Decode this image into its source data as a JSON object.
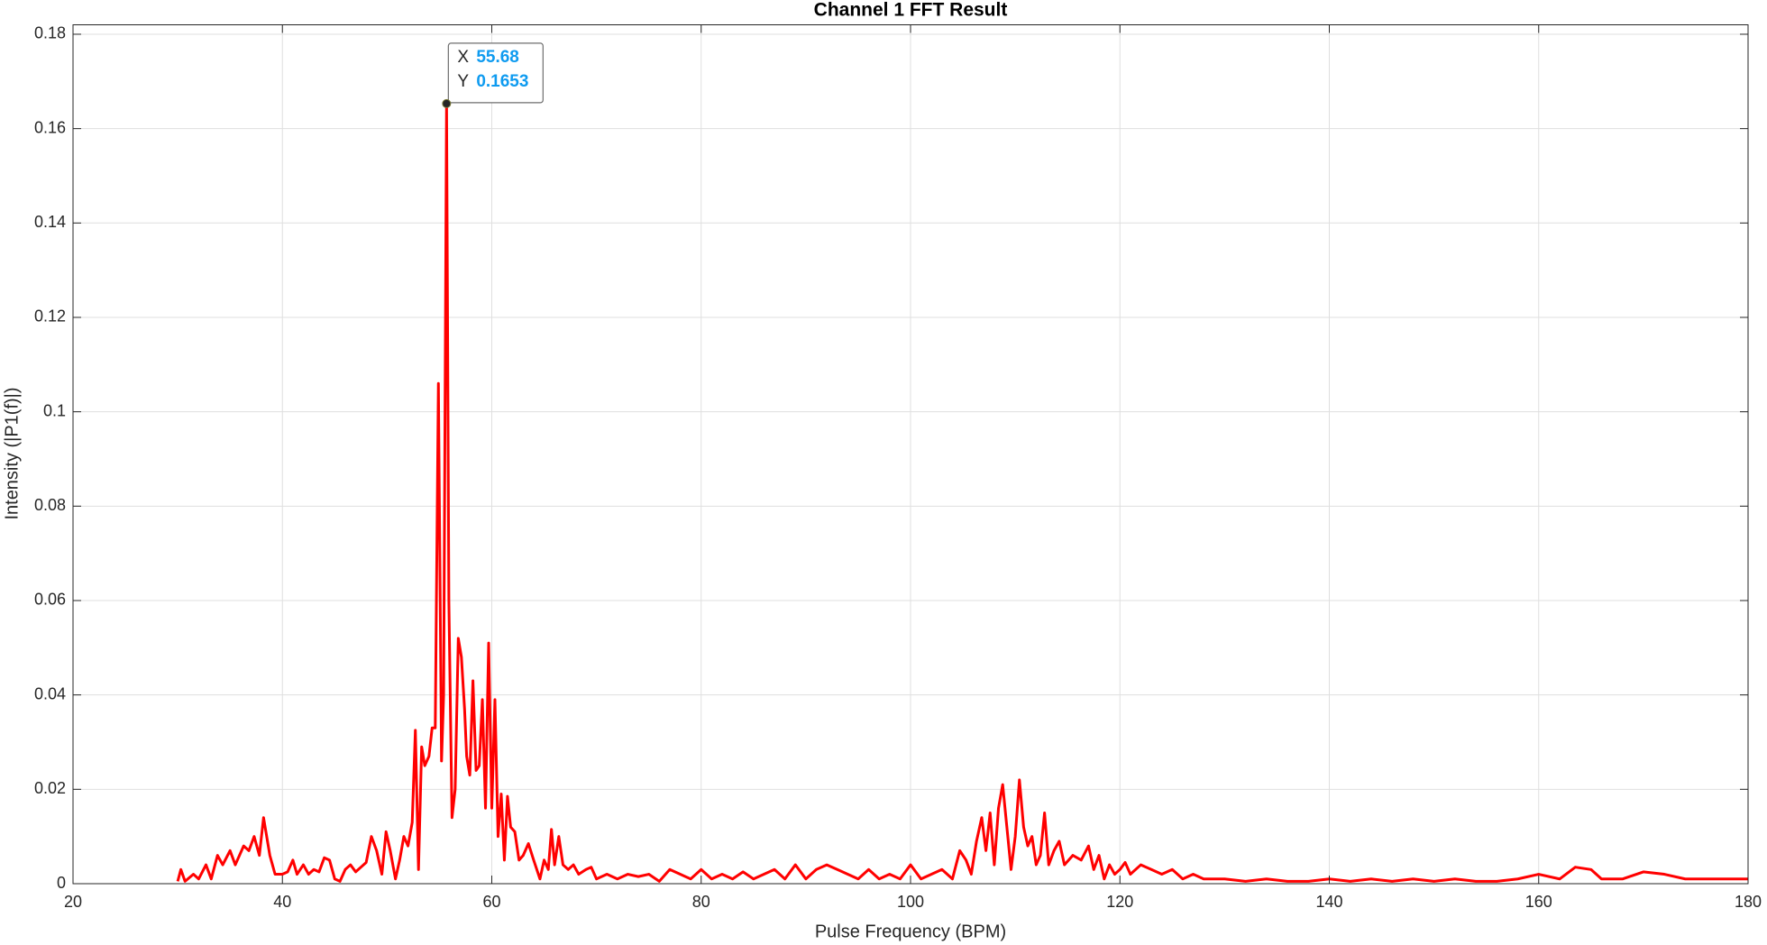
{
  "chart_data": {
    "type": "line",
    "title": "Channel 1 FFT Result",
    "x_label": "Pulse Frequency (BPM)",
    "y_label": "Intensity (|P1(f)|)",
    "xlim": [
      20,
      180
    ],
    "xticks": [
      20,
      40,
      60,
      80,
      100,
      120,
      140,
      160,
      180
    ],
    "ylim": [
      0,
      0.182
    ],
    "yticks": [
      0,
      0.02,
      0.04,
      0.06,
      0.08,
      0.1,
      0.12,
      0.14,
      0.16,
      0.18
    ],
    "grid": true,
    "x": [
      30,
      30.3,
      30.7,
      31.5,
      32,
      32.7,
      33.2,
      33.8,
      34.3,
      35,
      35.5,
      36.3,
      36.8,
      37.3,
      37.8,
      38.2,
      38.8,
      39.3,
      40,
      40.5,
      41,
      41.4,
      42,
      42.5,
      43,
      43.5,
      44,
      44.5,
      45,
      45.5,
      46,
      46.5,
      47,
      47.5,
      48,
      48.5,
      49,
      49.5,
      49.9,
      50.3,
      50.8,
      51.2,
      51.6,
      52,
      52.4,
      52.7,
      53,
      53.3,
      53.6,
      54,
      54.3,
      54.6,
      54.9,
      55.2,
      55.4,
      55.68,
      55.9,
      56.2,
      56.5,
      56.8,
      57.1,
      57.4,
      57.6,
      57.9,
      58.2,
      58.5,
      58.8,
      59.1,
      59.4,
      59.7,
      60,
      60.3,
      60.6,
      60.9,
      61.2,
      61.5,
      61.8,
      62.2,
      62.6,
      63,
      63.5,
      64,
      64.6,
      65,
      65.4,
      65.7,
      66,
      66.4,
      66.8,
      67.3,
      67.8,
      68.3,
      69,
      69.5,
      70,
      71,
      72,
      73,
      74,
      75,
      76,
      77,
      78,
      79,
      80,
      81,
      82,
      83,
      84,
      85,
      86,
      87,
      88,
      89,
      90,
      91,
      92,
      93,
      94,
      95,
      96,
      97,
      98,
      99,
      100,
      101,
      102,
      103,
      104,
      104.7,
      105.3,
      105.8,
      106.3,
      106.8,
      107.2,
      107.6,
      108,
      108.4,
      108.8,
      109.2,
      109.6,
      110,
      110.4,
      110.8,
      111.2,
      111.6,
      112,
      112.4,
      112.8,
      113.2,
      113.7,
      114.2,
      114.7,
      115.5,
      116.3,
      117,
      117.5,
      118,
      118.5,
      119,
      119.5,
      120,
      120.5,
      121,
      122,
      123,
      124,
      125,
      126,
      127,
      128,
      130,
      132,
      134,
      136,
      138,
      140,
      142,
      144,
      146,
      148,
      150,
      152,
      154,
      156,
      158,
      160,
      162,
      163.5,
      165,
      166,
      168,
      170,
      172,
      174,
      176,
      178,
      180
    ],
    "series": [
      {
        "color": "#ff0000",
        "values": [
          0.0005,
          0.003,
          0.0005,
          0.002,
          0.001,
          0.004,
          0.001,
          0.006,
          0.004,
          0.007,
          0.004,
          0.008,
          0.007,
          0.01,
          0.006,
          0.014,
          0.006,
          0.002,
          0.002,
          0.0025,
          0.005,
          0.002,
          0.004,
          0.002,
          0.003,
          0.0025,
          0.0055,
          0.005,
          0.001,
          0.0005,
          0.003,
          0.004,
          0.0025,
          0.0035,
          0.0045,
          0.01,
          0.007,
          0.002,
          0.011,
          0.007,
          0.001,
          0.005,
          0.01,
          0.008,
          0.013,
          0.0325,
          0.003,
          0.029,
          0.025,
          0.027,
          0.033,
          0.033,
          0.106,
          0.026,
          0.04,
          0.1653,
          0.06,
          0.014,
          0.02,
          0.052,
          0.048,
          0.037,
          0.027,
          0.023,
          0.043,
          0.024,
          0.025,
          0.039,
          0.016,
          0.051,
          0.016,
          0.039,
          0.01,
          0.019,
          0.005,
          0.0185,
          0.012,
          0.011,
          0.005,
          0.006,
          0.0085,
          0.005,
          0.001,
          0.005,
          0.003,
          0.0115,
          0.004,
          0.01,
          0.004,
          0.003,
          0.004,
          0.002,
          0.003,
          0.0035,
          0.001,
          0.002,
          0.001,
          0.002,
          0.0015,
          0.002,
          0.0005,
          0.003,
          0.002,
          0.001,
          0.003,
          0.001,
          0.002,
          0.001,
          0.0025,
          0.001,
          0.002,
          0.003,
          0.001,
          0.004,
          0.001,
          0.003,
          0.004,
          0.003,
          0.002,
          0.001,
          0.003,
          0.001,
          0.002,
          0.001,
          0.004,
          0.001,
          0.002,
          0.003,
          0.001,
          0.007,
          0.005,
          0.002,
          0.009,
          0.014,
          0.007,
          0.015,
          0.004,
          0.016,
          0.021,
          0.012,
          0.003,
          0.01,
          0.022,
          0.012,
          0.008,
          0.01,
          0.004,
          0.006,
          0.015,
          0.004,
          0.007,
          0.009,
          0.004,
          0.006,
          0.005,
          0.008,
          0.003,
          0.006,
          0.001,
          0.004,
          0.002,
          0.003,
          0.0045,
          0.002,
          0.004,
          0.003,
          0.002,
          0.003,
          0.001,
          0.002,
          0.001,
          0.001,
          0.0005,
          0.001,
          0.0005,
          0.0005,
          0.001,
          0.0005,
          0.001,
          0.0005,
          0.001,
          0.0005,
          0.001,
          0.0005,
          0.0005,
          0.001,
          0.002,
          0.001,
          0.0035,
          0.003,
          0.001,
          0.001,
          0.0025,
          0.002,
          0.001,
          0.001,
          0.001,
          0.001
        ]
      }
    ],
    "datatip": {
      "x_label": "X",
      "x": 55.68,
      "y_label": "Y",
      "y": 0.1653
    }
  }
}
